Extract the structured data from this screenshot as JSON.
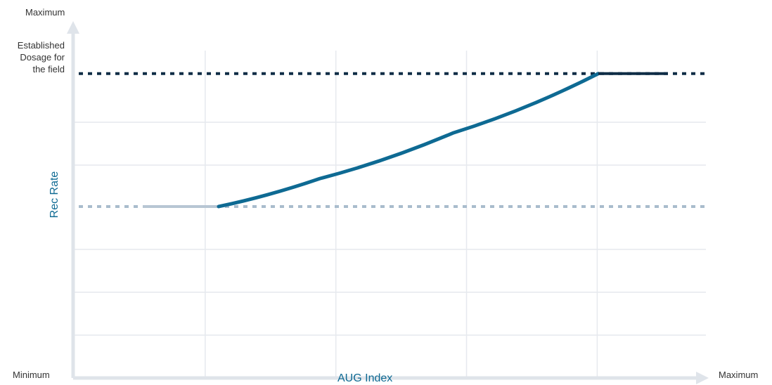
{
  "chart_data": {
    "type": "line",
    "xlabel": "AUG Index",
    "ylabel": "Rec Rate",
    "x_axis_labels": {
      "min": "Minimum",
      "max": "Maximum"
    },
    "y_axis_labels": {
      "max": "Maximum",
      "reference": "Established\nDosage for\nthe field"
    },
    "xlim": [
      0,
      1
    ],
    "ylim": [
      0,
      1
    ],
    "grid": true,
    "reference_lines": [
      {
        "value": 0.87,
        "style": "dotted",
        "color": "#0f2d46"
      },
      {
        "value": 0.49,
        "style": "dotted",
        "color": "#a9bccd"
      }
    ],
    "segments": [
      {
        "style": "flat-low",
        "x": [
          0.11,
          0.23
        ],
        "y": [
          0.49,
          0.49
        ],
        "color": "#b7c6d3"
      },
      {
        "style": "curve",
        "x": [
          0.23,
          0.39,
          0.6,
          0.83
        ],
        "y": [
          0.49,
          0.57,
          0.7,
          0.87
        ],
        "color": "#0e6a93"
      },
      {
        "style": "flat-high",
        "x": [
          0.83,
          0.94
        ],
        "y": [
          0.87,
          0.87
        ],
        "color": "#0f2d46"
      }
    ],
    "colors": {
      "curve": "#0e6a93",
      "axis": "#dfe4ea",
      "grid": "#e6e9ee"
    }
  }
}
